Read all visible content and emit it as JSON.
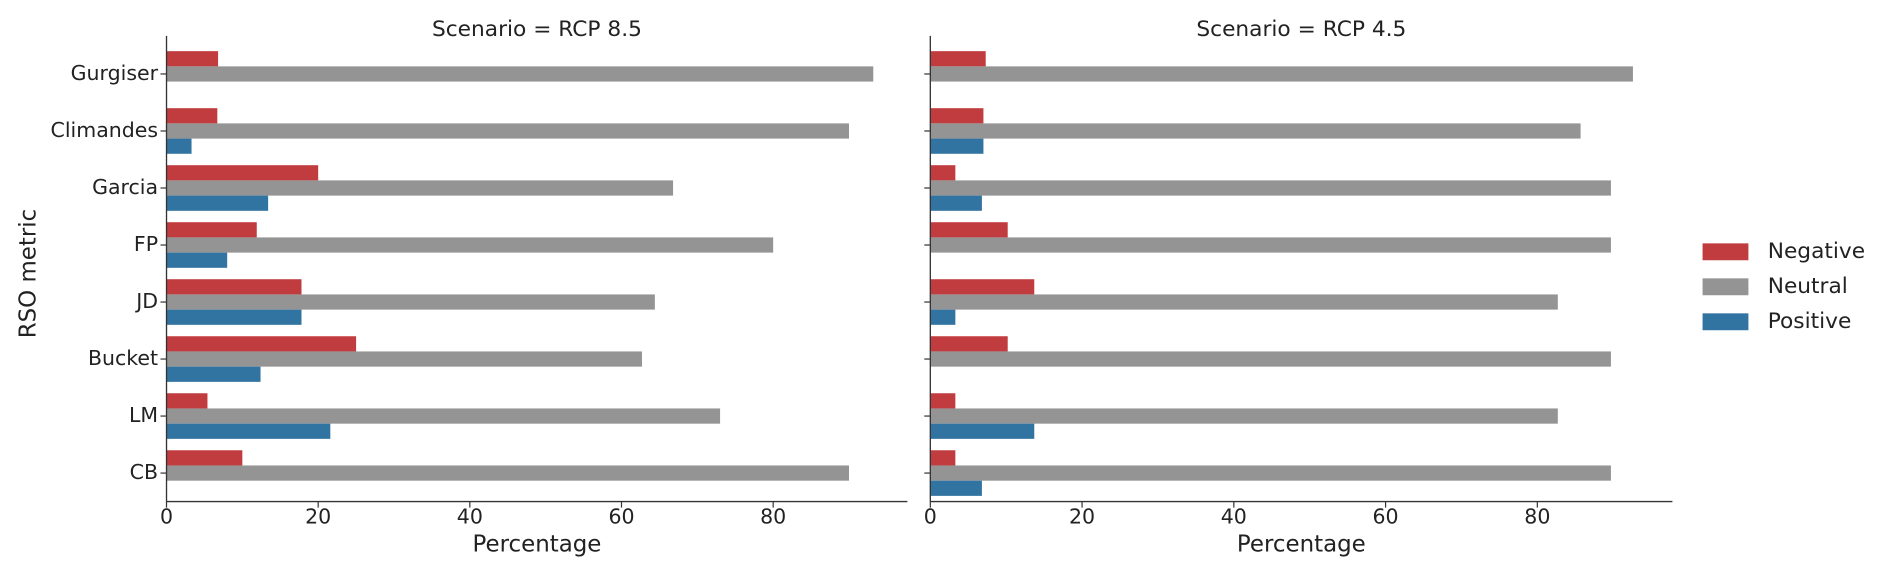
{
  "chart_data": [
    {
      "type": "barh",
      "title": "Scenario = RCP 8.5",
      "xlabel": "Percentage",
      "ylabel": "RSO metric",
      "categories": [
        "Gurgiser",
        "Climandes",
        "Garcia",
        "FP",
        "JD",
        "Bucket",
        "LM",
        "CB"
      ],
      "series": [
        {
          "name": "Negative",
          "color": "#c13c3e",
          "values": [
            6.8,
            6.7,
            20.0,
            11.9,
            17.8,
            25.0,
            5.4,
            10.0
          ]
        },
        {
          "name": "Neutral",
          "color": "#949494",
          "values": [
            93.2,
            90.0,
            66.8,
            80.0,
            64.4,
            62.7,
            73.0,
            90.0
          ]
        },
        {
          "name": "Positive",
          "color": "#3274a1",
          "values": [
            null,
            3.3,
            13.4,
            8.0,
            17.8,
            12.4,
            21.6,
            null
          ]
        }
      ],
      "xlim": [
        0,
        97.7
      ],
      "xticks": [
        0,
        20,
        40,
        60,
        80
      ]
    },
    {
      "type": "barh",
      "title": "Scenario = RCP 4.5",
      "xlabel": "Percentage",
      "series": [
        {
          "color": "#c13c3e",
          "values": [
            7.3,
            7.0,
            3.3,
            10.2,
            13.7,
            10.2,
            3.3,
            3.3
          ]
        },
        {
          "color": "#949494",
          "values": [
            92.6,
            85.7,
            89.7,
            89.7,
            82.7,
            89.7,
            82.7,
            89.7
          ]
        },
        {
          "color": "#3274a1",
          "values": [
            null,
            7.0,
            6.8,
            null,
            3.3,
            null,
            13.7,
            6.8
          ]
        }
      ],
      "xlim": [
        0,
        97.8
      ],
      "xticks": [
        0,
        20,
        40,
        60,
        80
      ]
    }
  ]
}
